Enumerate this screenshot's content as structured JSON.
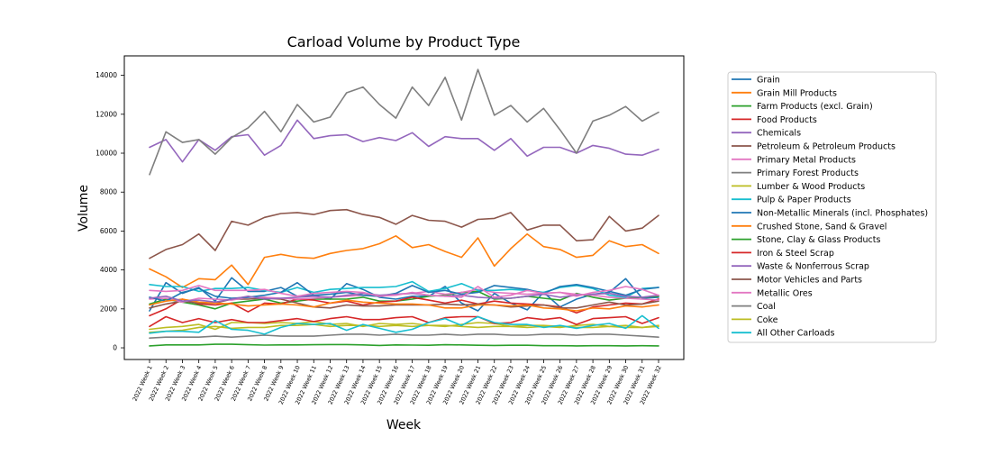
{
  "chart_data": {
    "type": "line",
    "title": "Carload Volume by Product Type",
    "xlabel": "Week",
    "ylabel": "Volume",
    "ylim": [
      -600,
      15000
    ],
    "yticks": [
      0,
      2000,
      4000,
      6000,
      8000,
      10000,
      12000,
      14000
    ],
    "grid": false,
    "legend_position": "right",
    "categories": [
      "2022 Week 1",
      "2022 Week 2",
      "2022 Week 3",
      "2022 Week 4",
      "2022 Week 5",
      "2022 Week 6",
      "2022 Week 7",
      "2022 Week 8",
      "2022 Week 9",
      "2022 Week 10",
      "2022 Week 11",
      "2022 Week 12",
      "2022 Week 13",
      "2022 Week 14",
      "2022 Week 15",
      "2022 Week 16",
      "2022 Week 17",
      "2022 Week 18",
      "2022 Week 19",
      "2022 Week 20",
      "2022 Week 21",
      "2022 Week 22",
      "2022 Week 23",
      "2022 Week 24",
      "2022 Week 25",
      "2022 Week 26",
      "2022 Week 27",
      "2022 Week 28",
      "2022 Week 29",
      "2022 Week 30",
      "2022 Week 31",
      "2022 Week 32"
    ],
    "series": [
      {
        "name": "Grain",
        "color": "#1f77b4",
        "values": [
          1900,
          3350,
          2800,
          3100,
          2400,
          3600,
          2900,
          2900,
          3100,
          2650,
          2700,
          2500,
          3300,
          3000,
          2600,
          2500,
          2650,
          2650,
          3150,
          2300,
          1900,
          2800,
          2300,
          1950,
          2850,
          2100,
          2500,
          2750,
          2850,
          3550,
          2550,
          2600
        ]
      },
      {
        "name": "Grain Mill Products",
        "color": "#ff7f0e",
        "values": [
          4050,
          3650,
          3100,
          3550,
          3500,
          4250,
          3250,
          4650,
          4800,
          4650,
          4600,
          4850,
          5000,
          5100,
          5350,
          5750,
          5150,
          5300,
          4950,
          4650,
          5650,
          4200,
          5100,
          5850,
          5200,
          5050,
          4650,
          4750,
          5500,
          5200,
          5300,
          4850
        ]
      },
      {
        "name": "Farm Products (excl. Grain)",
        "color": "#2ca02c",
        "values": [
          2250,
          2500,
          2350,
          2200,
          2000,
          2300,
          2400,
          2500,
          2300,
          2400,
          2500,
          2500,
          2500,
          2600,
          2400,
          2400,
          2500,
          2650,
          2700,
          2850,
          2900,
          2500,
          2550,
          2650,
          2550,
          2450,
          2800,
          2600,
          2450,
          2550,
          2600,
          2650
        ]
      },
      {
        "name": "Food Products",
        "color": "#d62728",
        "values": [
          1650,
          2000,
          2500,
          2250,
          2200,
          2300,
          1850,
          2300,
          2250,
          2500,
          2450,
          2300,
          2400,
          2200,
          2350,
          2400,
          2600,
          2450,
          2300,
          2450,
          2250,
          2400,
          2300,
          2250,
          2200,
          2100,
          1800,
          2100,
          2200,
          2300,
          2250,
          2500
        ]
      },
      {
        "name": "Chemicals",
        "color": "#9467bd",
        "values": [
          10300,
          10700,
          9550,
          10700,
          10150,
          10850,
          10950,
          9900,
          10400,
          11700,
          10750,
          10900,
          10950,
          10600,
          10800,
          10650,
          11050,
          10350,
          10850,
          10750,
          10750,
          10150,
          10750,
          9850,
          10300,
          10300,
          10000,
          10400,
          10250,
          9950,
          9900,
          10200
        ]
      },
      {
        "name": "Petroleum & Petroleum Products",
        "color": "#8c564b",
        "values": [
          2050,
          2250,
          2400,
          2300,
          2300,
          2500,
          2500,
          2550,
          2500,
          2300,
          2100,
          2050,
          2200,
          2150,
          2150,
          2200,
          2200,
          2200,
          2250,
          2200,
          2250,
          2200,
          2100,
          2150,
          2200,
          2050,
          2050,
          2200,
          2350,
          2200,
          2250,
          2400
        ]
      },
      {
        "name": "Primary Metal Products",
        "color": "#e377c2",
        "values": [
          2500,
          2550,
          2350,
          2550,
          2500,
          2450,
          2600,
          2600,
          2550,
          2500,
          2550,
          2600,
          2650,
          2700,
          2650,
          2750,
          2800,
          2900,
          2750,
          2850,
          3000,
          2850,
          2800,
          2750,
          2800,
          2850,
          2750,
          2700,
          2600,
          2550,
          2500,
          2450
        ]
      },
      {
        "name": "Primary Forest Products",
        "color": "#7f7f7f",
        "values": [
          500,
          550,
          550,
          550,
          600,
          550,
          600,
          650,
          600,
          600,
          600,
          650,
          700,
          700,
          650,
          700,
          650,
          650,
          700,
          650,
          700,
          700,
          650,
          650,
          700,
          700,
          650,
          700,
          700,
          650,
          600,
          550
        ]
      },
      {
        "name": "Lumber & Wood Products",
        "color": "#bcbd22",
        "values": [
          950,
          1050,
          1100,
          1200,
          950,
          1300,
          1300,
          1250,
          1300,
          1250,
          1350,
          1200,
          1250,
          1100,
          1250,
          1200,
          1250,
          1150,
          1100,
          1200,
          1300,
          1250,
          1100,
          1050,
          1100,
          1050,
          1150,
          1200,
          1100,
          1150,
          1050,
          1150
        ]
      },
      {
        "name": "Pulp & Paper Products",
        "color": "#17becf",
        "values": [
          3250,
          3150,
          3150,
          2900,
          3050,
          3050,
          3100,
          2950,
          2850,
          3100,
          2850,
          3000,
          3050,
          3100,
          3100,
          3150,
          3400,
          2900,
          3050,
          3300,
          2950,
          2950,
          3000,
          2950,
          2850,
          3100,
          3200,
          3050,
          2700,
          2600,
          3050,
          3100
        ]
      },
      {
        "name": "Non-Metallic Minerals (incl. Phosphates)",
        "color": "#1f77b4",
        "values": [
          2600,
          2400,
          2850,
          3050,
          2650,
          2550,
          2600,
          2700,
          2850,
          3350,
          2700,
          2750,
          2850,
          2700,
          2650,
          2800,
          3200,
          2850,
          2950,
          2750,
          2850,
          3200,
          3100,
          3000,
          2800,
          3150,
          3250,
          3100,
          2900,
          2700,
          3000,
          3100
        ]
      },
      {
        "name": "Crushed Stone, Sand & Gravel",
        "color": "#ff7f0e",
        "values": [
          2200,
          2400,
          2500,
          2350,
          2300,
          2250,
          2150,
          2200,
          2250,
          2200,
          2100,
          2300,
          2450,
          2350,
          2300,
          2250,
          2250,
          2200,
          2050,
          2050,
          2200,
          2200,
          2150,
          2200,
          2050,
          2000,
          1900,
          2050,
          2000,
          2150,
          2100,
          2200
        ]
      },
      {
        "name": "Stone, Clay & Glass Products",
        "color": "#2ca02c",
        "values": [
          100,
          150,
          150,
          150,
          180,
          180,
          160,
          140,
          150,
          150,
          160,
          170,
          170,
          150,
          120,
          150,
          140,
          130,
          160,
          150,
          130,
          120,
          130,
          130,
          110,
          110,
          100,
          110,
          110,
          100,
          110,
          100
        ]
      },
      {
        "name": "Iron & Steel Scrap",
        "color": "#d62728",
        "values": [
          1100,
          1600,
          1300,
          1500,
          1300,
          1450,
          1300,
          1300,
          1400,
          1500,
          1350,
          1500,
          1600,
          1450,
          1450,
          1550,
          1600,
          1300,
          1550,
          1600,
          1600,
          1250,
          1300,
          1550,
          1450,
          1550,
          1200,
          1500,
          1550,
          1600,
          1250,
          1550
        ]
      },
      {
        "name": "Waste & Nonferrous Scrap",
        "color": "#9467bd",
        "values": [
          2550,
          2650,
          2400,
          2450,
          2350,
          2500,
          2650,
          2500,
          2550,
          2600,
          2650,
          2600,
          2700,
          2800,
          2700,
          2750,
          2800,
          2700,
          2650,
          2700,
          2600,
          2550,
          2550,
          2650,
          2750,
          2600,
          2700,
          2750,
          2800,
          2650,
          2600,
          2700
        ]
      },
      {
        "name": "Motor Vehicles and Parts",
        "color": "#8c564b",
        "values": [
          4600,
          5050,
          5300,
          5850,
          5000,
          6500,
          6300,
          6700,
          6900,
          6950,
          6850,
          7050,
          7100,
          6850,
          6700,
          6350,
          6800,
          6550,
          6500,
          6200,
          6600,
          6650,
          6950,
          6050,
          6300,
          6300,
          5500,
          5550,
          6750,
          6000,
          6150,
          6800
        ]
      },
      {
        "name": "Metallic Ores",
        "color": "#e377c2",
        "values": [
          2950,
          2900,
          2950,
          3200,
          2950,
          2950,
          2950,
          3000,
          2800,
          2650,
          2800,
          2850,
          2900,
          2850,
          2650,
          2700,
          2850,
          2700,
          2650,
          2600,
          3150,
          2600,
          2700,
          2950,
          2800,
          2850,
          2650,
          2850,
          2950,
          3150,
          3000,
          2700
        ]
      },
      {
        "name": "Coal",
        "color": "#7f7f7f",
        "values": [
          8900,
          11100,
          10550,
          10700,
          9950,
          10800,
          11300,
          12150,
          11100,
          12500,
          11600,
          11850,
          13100,
          13400,
          12500,
          11800,
          13400,
          12450,
          13900,
          11700,
          14300,
          11950,
          12450,
          11600,
          12300,
          11200,
          10000,
          11650,
          11950,
          12400,
          11650,
          12100
        ]
      },
      {
        "name": "Coke",
        "color": "#bcbd22",
        "values": [
          800,
          850,
          900,
          1050,
          1100,
          1000,
          1050,
          1050,
          1150,
          1150,
          1200,
          1100,
          1150,
          1150,
          1100,
          1150,
          1100,
          1150,
          1150,
          1100,
          1050,
          1100,
          1100,
          1150,
          1150,
          1100,
          1050,
          1050,
          1100,
          1050,
          1050,
          1100
        ]
      },
      {
        "name": "All Other Carloads",
        "color": "#17becf",
        "values": [
          750,
          850,
          850,
          800,
          1400,
          950,
          900,
          700,
          1050,
          1250,
          1200,
          1250,
          900,
          1200,
          1000,
          800,
          950,
          1300,
          1500,
          1150,
          1600,
          1300,
          1200,
          1200,
          1050,
          1150,
          1000,
          1150,
          1250,
          1000,
          1650,
          1000
        ]
      }
    ]
  }
}
